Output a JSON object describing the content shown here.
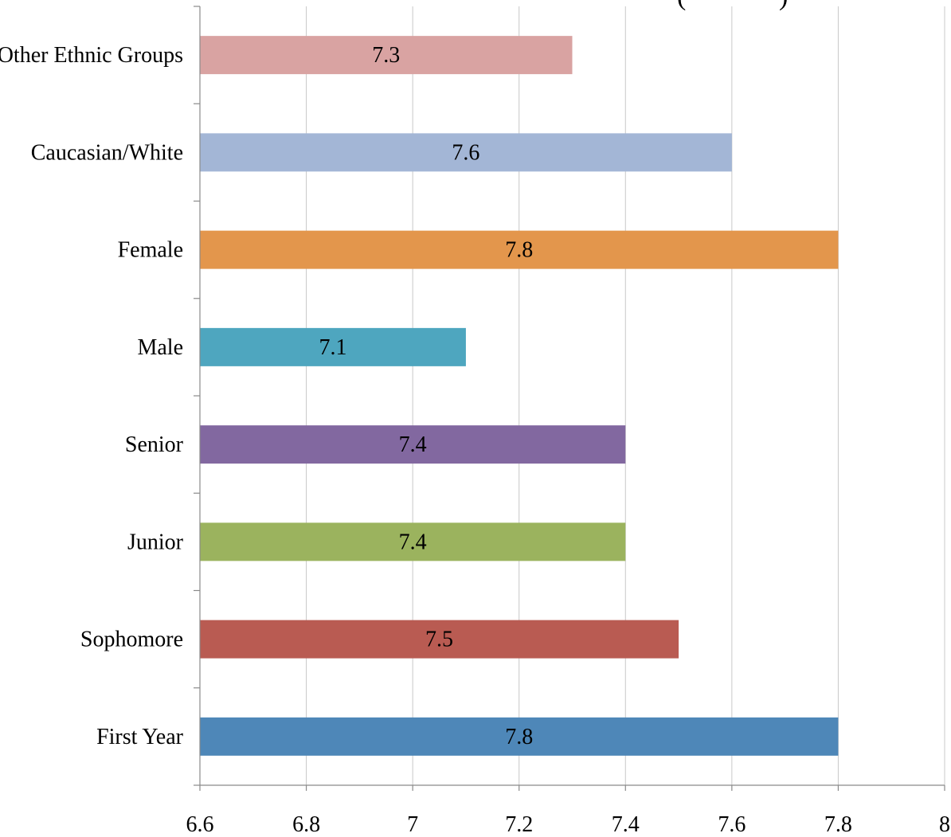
{
  "chart_data": {
    "type": "bar",
    "orientation": "horizontal",
    "title": "",
    "title_fragment": "(",
    "title_fragment_right": ")",
    "xlabel": "",
    "ylabel": "",
    "categories": [
      "Other Ethnic Groups",
      "Caucasian/White",
      "Female",
      "Male",
      "Senior",
      "Junior",
      "Sophomore",
      "First Year"
    ],
    "values": [
      7.3,
      7.6,
      7.8,
      7.1,
      7.4,
      7.4,
      7.5,
      7.8
    ],
    "data_labels": [
      "7.3",
      "7.6",
      "7.8",
      "7.1",
      "7.4",
      "7.4",
      "7.5",
      "7.8"
    ],
    "colors": [
      "#d9a3a2",
      "#a3b6d6",
      "#e3964c",
      "#4ea6bf",
      "#8268a0",
      "#9bb35e",
      "#b95b52",
      "#4e87b8"
    ],
    "xlim": [
      6.6,
      8
    ],
    "x_ticks": [
      6.6,
      6.8,
      7,
      7.2,
      7.4,
      7.6,
      7.8,
      8
    ],
    "x_tick_labels": [
      "6.6",
      "6.8",
      "7",
      "7.2",
      "7.4",
      "7.6",
      "7.8",
      "8"
    ],
    "grid": "vertical",
    "legend": "none"
  }
}
